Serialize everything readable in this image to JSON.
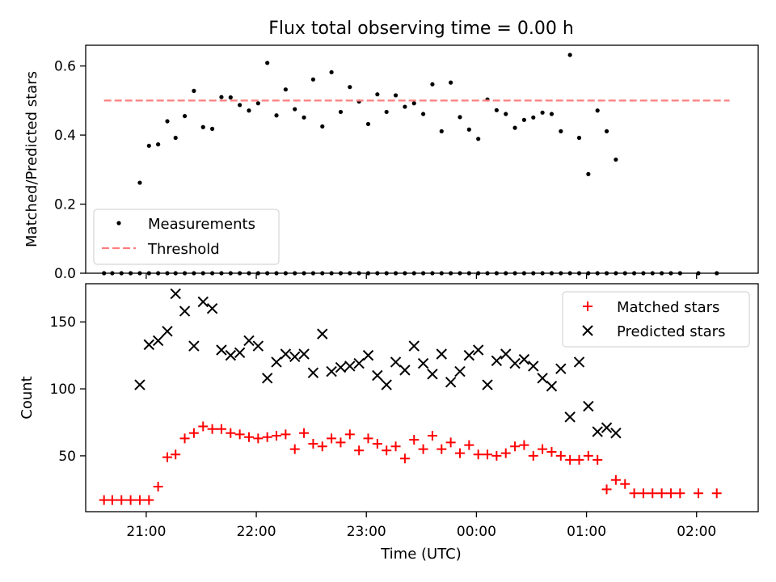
{
  "chart_data": [
    {
      "type": "scatter",
      "title": "Flux total observing time = 0.00 h",
      "ylabel": "Matched/Predicted stars",
      "ylim": [
        0,
        0.66
      ],
      "yticks": [
        0.0,
        0.2,
        0.4,
        0.6
      ],
      "ytick_labels": [
        "0.0",
        "0.2",
        "0.4",
        "0.6"
      ],
      "xlim_hours": [
        20.45,
        26.56
      ],
      "legend_position": "lower-left",
      "legend": [
        "Measurements",
        "Threshold"
      ],
      "series": [
        {
          "name": "Measurements",
          "marker": "dot",
          "color": "#000000",
          "x": [
            20.6167,
            20.6917,
            20.775,
            20.8583,
            20.9417,
            21.025,
            21.1083,
            21.1917,
            21.2667,
            21.35,
            21.4333,
            21.5167,
            21.6,
            21.6833,
            21.7667,
            21.85,
            21.9333,
            22.0167,
            22.1,
            22.1833,
            22.2667,
            22.35,
            22.4333,
            22.5167,
            22.6,
            22.6833,
            22.7667,
            22.85,
            22.9333,
            23.0167,
            23.1,
            23.1833,
            23.2667,
            23.35,
            23.4333,
            23.5167,
            23.6,
            23.6833,
            23.7667,
            23.85,
            23.9333,
            24.0167,
            24.1,
            24.1833,
            24.2667,
            24.35,
            24.4333,
            24.5167,
            24.6,
            24.6833,
            24.7667,
            24.85,
            24.9333,
            25.0167,
            25.1,
            25.1833,
            25.2667,
            25.35,
            25.4333,
            25.5167,
            25.6,
            25.6833,
            25.7667,
            25.85,
            26.0167,
            26.1833,
            20.9417,
            21.025,
            21.1083,
            21.1917,
            21.2667,
            21.35,
            21.4333,
            21.5167,
            21.6,
            21.6833,
            21.7667,
            21.85,
            21.9333,
            22.0167,
            22.1,
            22.1833,
            22.2667,
            22.35,
            22.4333,
            22.5167,
            22.6,
            22.6833,
            22.7667,
            22.85,
            22.9333,
            23.0167,
            23.1,
            23.1833,
            23.2667,
            23.35,
            23.4333,
            23.5167,
            23.6,
            23.6833,
            23.7667,
            23.85,
            23.9333,
            24.0167,
            24.1,
            24.1833,
            24.2667,
            24.35,
            24.4333,
            24.5167,
            24.6,
            24.6833,
            24.7667,
            24.85,
            24.9333,
            25.0167,
            25.1,
            25.1833,
            25.2667
          ],
          "y": [
            0,
            0,
            0,
            0,
            0,
            0,
            0,
            0,
            0,
            0,
            0,
            0,
            0,
            0,
            0,
            0,
            0,
            0,
            0,
            0,
            0,
            0,
            0,
            0,
            0,
            0,
            0,
            0,
            0,
            0,
            0,
            0,
            0,
            0,
            0,
            0,
            0,
            0,
            0,
            0,
            0,
            0,
            0,
            0,
            0,
            0,
            0,
            0,
            0,
            0,
            0,
            0,
            0,
            0,
            0,
            0,
            0,
            0,
            0,
            0,
            0,
            0,
            0,
            0,
            0,
            0,
            0.262,
            0.369,
            0.373,
            0.44,
            0.392,
            0.455,
            0.528,
            0.423,
            0.418,
            0.51,
            0.509,
            0.487,
            0.471,
            0.492,
            0.609,
            0.457,
            0.532,
            0.475,
            0.451,
            0.561,
            0.425,
            0.582,
            0.467,
            0.539,
            0.497,
            0.432,
            0.518,
            0.467,
            0.515,
            0.482,
            0.492,
            0.461,
            0.547,
            0.411,
            0.552,
            0.452,
            0.416,
            0.389,
            0.503,
            0.472,
            0.461,
            0.421,
            0.444,
            0.451,
            0.465,
            0.461,
            0.411,
            0.632,
            0.392,
            0.287,
            0.471,
            0.411,
            0.329
          ]
        },
        {
          "name": "Threshold",
          "marker": "dashed-line",
          "color": "#ff7f7f",
          "x": [
            20.6167,
            26.3
          ],
          "y": [
            0.5,
            0.5
          ]
        }
      ]
    },
    {
      "type": "scatter",
      "xlabel": "Time (UTC)",
      "ylabel": "Count",
      "ylim": [
        8.3,
        178.5
      ],
      "yticks": [
        50,
        100,
        150
      ],
      "ytick_labels": [
        "50",
        "100",
        "150"
      ],
      "xlim_hours": [
        20.45,
        26.56
      ],
      "xticks_hours": [
        21,
        22,
        23,
        24,
        25,
        26
      ],
      "xtick_labels": [
        "21:00",
        "22:00",
        "23:00",
        "00:00",
        "01:00",
        "02:00"
      ],
      "legend_position": "top-right",
      "legend": [
        "Matched stars",
        "Predicted stars"
      ],
      "series": [
        {
          "name": "Matched stars",
          "marker": "plus",
          "color": "#ff0000",
          "x": [
            20.6167,
            20.6917,
            20.775,
            20.8583,
            20.9417,
            21.025,
            21.1083,
            21.1917,
            21.2667,
            21.35,
            21.4333,
            21.5167,
            21.6,
            21.6833,
            21.7667,
            21.85,
            21.9333,
            22.0167,
            22.1,
            22.1833,
            22.2667,
            22.35,
            22.4333,
            22.5167,
            22.6,
            22.6833,
            22.7667,
            22.85,
            22.9333,
            23.0167,
            23.1,
            23.1833,
            23.2667,
            23.35,
            23.4333,
            23.5167,
            23.6,
            23.6833,
            23.7667,
            23.85,
            23.9333,
            24.0167,
            24.1,
            24.1833,
            24.2667,
            24.35,
            24.4333,
            24.5167,
            24.6,
            24.6833,
            24.7667,
            24.85,
            24.9333,
            25.0167,
            25.1,
            25.1833,
            25.2667,
            25.35,
            25.4333,
            25.5167,
            25.6,
            25.6833,
            25.7667,
            25.85,
            26.0167,
            26.1833
          ],
          "y": [
            17,
            17,
            17,
            17,
            17,
            17,
            27,
            49,
            51,
            63,
            67,
            72,
            70,
            70,
            67,
            66,
            64,
            63,
            64,
            65,
            66,
            55,
            67,
            59,
            57,
            63,
            60,
            66,
            54,
            63,
            59,
            54,
            57,
            48,
            62,
            55,
            65,
            55,
            60,
            52,
            58,
            51,
            51,
            50,
            52,
            57,
            58,
            50,
            55,
            53,
            50,
            47,
            47,
            50,
            47,
            25,
            32,
            29,
            22,
            22,
            22,
            22,
            22,
            22,
            22,
            22
          ]
        },
        {
          "name": "Predicted stars",
          "marker": "x",
          "color": "#000000",
          "x": [
            20.9417,
            21.025,
            21.1083,
            21.1917,
            21.2667,
            21.35,
            21.4333,
            21.5167,
            21.6,
            21.6833,
            21.7667,
            21.85,
            21.9333,
            22.0167,
            22.1,
            22.1833,
            22.2667,
            22.35,
            22.4333,
            22.5167,
            22.6,
            22.6833,
            22.7667,
            22.85,
            22.9333,
            23.0167,
            23.1,
            23.1833,
            23.2667,
            23.35,
            23.4333,
            23.5167,
            23.6,
            23.6833,
            23.7667,
            23.85,
            23.9333,
            24.0167,
            24.1,
            24.1833,
            24.2667,
            24.35,
            24.4333,
            24.5167,
            24.6,
            24.6833,
            24.7667,
            24.85,
            24.9333,
            25.0167,
            25.1,
            25.1833,
            25.2667
          ],
          "y": [
            103,
            133,
            136,
            143,
            171,
            158,
            132,
            165,
            160,
            129,
            125,
            127,
            136,
            132,
            108,
            120,
            126,
            124,
            126,
            112,
            141,
            113,
            116,
            117,
            119,
            125,
            110,
            103,
            120,
            114,
            132,
            119,
            111,
            126,
            105,
            113,
            125,
            129,
            103,
            121,
            126,
            119,
            122,
            117,
            108,
            102,
            115,
            79,
            120,
            87,
            68,
            71,
            67
          ]
        }
      ]
    }
  ]
}
